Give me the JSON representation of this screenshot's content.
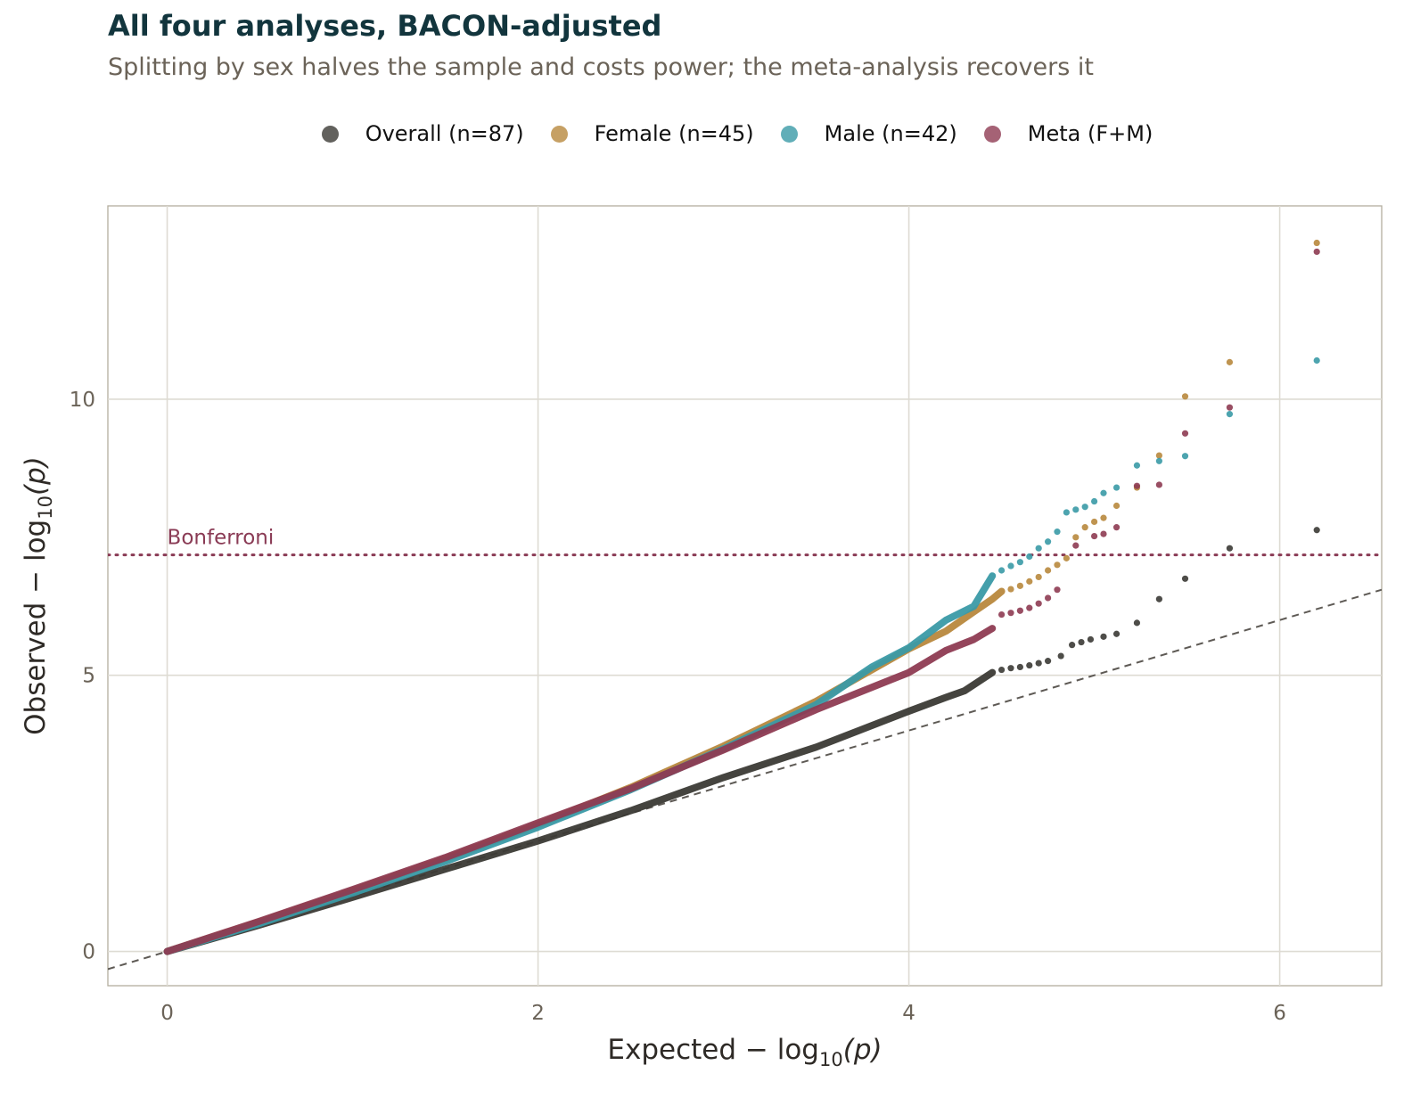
{
  "chart_data": {
    "type": "scatter",
    "title": "All four analyses, BACON-adjusted",
    "subtitle": "Splitting by sex halves the sample and costs power; the meta-analysis recovers it",
    "xlabel": {
      "pre": "Expected − log",
      "sub": "10",
      "post": "(p)"
    },
    "ylabel": {
      "pre": "Observed − log",
      "sub": "10",
      "post": "(p)"
    },
    "xlim": [
      -0.32,
      6.55
    ],
    "ylim": [
      -0.62,
      13.5
    ],
    "x_ticks": [
      0,
      2,
      4,
      6
    ],
    "y_ticks": [
      0,
      5,
      10
    ],
    "grid": true,
    "legend_position": "top",
    "reference_line": {
      "type": "identity",
      "style": "dashed",
      "color": "#5e5a55"
    },
    "threshold_line": {
      "label": "Bonferroni",
      "y": 7.18,
      "style": "dotted",
      "color": "#8a3b55"
    },
    "series": [
      {
        "name": "Overall (n=87)",
        "color": "#3b3a35",
        "curve": [
          [
            0,
            0
          ],
          [
            0.5,
            0.48
          ],
          [
            1.0,
            0.98
          ],
          [
            1.5,
            1.49
          ],
          [
            2.0,
            2.0
          ],
          [
            2.5,
            2.55
          ],
          [
            3.0,
            3.15
          ],
          [
            3.5,
            3.7
          ],
          [
            4.0,
            4.35
          ],
          [
            4.2,
            4.6
          ],
          [
            4.3,
            4.72
          ],
          [
            4.45,
            5.05
          ]
        ],
        "points": [
          [
            4.5,
            5.1
          ],
          [
            4.55,
            5.13
          ],
          [
            4.6,
            5.15
          ],
          [
            4.65,
            5.18
          ],
          [
            4.7,
            5.22
          ],
          [
            4.75,
            5.26
          ],
          [
            4.82,
            5.35
          ],
          [
            4.88,
            5.55
          ],
          [
            4.93,
            5.6
          ],
          [
            4.98,
            5.65
          ],
          [
            5.05,
            5.7
          ],
          [
            5.12,
            5.75
          ],
          [
            5.23,
            5.95
          ],
          [
            5.35,
            6.38
          ],
          [
            5.49,
            6.75
          ],
          [
            5.73,
            7.3
          ],
          [
            6.2,
            7.63
          ]
        ]
      },
      {
        "name": "Female (n=45)",
        "color": "#b8883d",
        "curve": [
          [
            0,
            0
          ],
          [
            0.5,
            0.54
          ],
          [
            1.0,
            1.1
          ],
          [
            1.5,
            1.68
          ],
          [
            2.0,
            2.3
          ],
          [
            2.5,
            2.97
          ],
          [
            3.0,
            3.72
          ],
          [
            3.5,
            4.53
          ],
          [
            4.0,
            5.48
          ],
          [
            4.2,
            5.8
          ],
          [
            4.35,
            6.15
          ],
          [
            4.45,
            6.38
          ],
          [
            4.5,
            6.52
          ]
        ],
        "points": [
          [
            4.55,
            6.56
          ],
          [
            4.6,
            6.62
          ],
          [
            4.65,
            6.7
          ],
          [
            4.7,
            6.78
          ],
          [
            4.75,
            6.9
          ],
          [
            4.8,
            7.0
          ],
          [
            4.85,
            7.12
          ],
          [
            4.9,
            7.5
          ],
          [
            4.95,
            7.68
          ],
          [
            5.0,
            7.78
          ],
          [
            5.05,
            7.85
          ],
          [
            5.12,
            8.07
          ],
          [
            5.23,
            8.4
          ],
          [
            5.35,
            8.98
          ],
          [
            5.49,
            10.05
          ],
          [
            5.73,
            10.67
          ],
          [
            6.2,
            12.83
          ]
        ]
      },
      {
        "name": "Male (n=42)",
        "color": "#3a9aa6",
        "curve": [
          [
            0,
            0
          ],
          [
            0.5,
            0.51
          ],
          [
            1.0,
            1.06
          ],
          [
            1.5,
            1.63
          ],
          [
            2.0,
            2.25
          ],
          [
            2.5,
            2.93
          ],
          [
            3.0,
            3.67
          ],
          [
            3.5,
            4.47
          ],
          [
            3.8,
            5.15
          ],
          [
            4.0,
            5.5
          ],
          [
            4.2,
            6.0
          ],
          [
            4.35,
            6.25
          ],
          [
            4.45,
            6.8
          ]
        ],
        "points": [
          [
            4.5,
            6.9
          ],
          [
            4.55,
            6.98
          ],
          [
            4.6,
            7.05
          ],
          [
            4.65,
            7.15
          ],
          [
            4.7,
            7.3
          ],
          [
            4.75,
            7.42
          ],
          [
            4.8,
            7.6
          ],
          [
            4.85,
            7.95
          ],
          [
            4.9,
            8.0
          ],
          [
            4.95,
            8.05
          ],
          [
            5.0,
            8.15
          ],
          [
            5.05,
            8.3
          ],
          [
            5.12,
            8.4
          ],
          [
            5.23,
            8.8
          ],
          [
            5.35,
            8.88
          ],
          [
            5.49,
            8.97
          ],
          [
            5.73,
            9.73
          ],
          [
            6.2,
            10.7
          ]
        ]
      },
      {
        "name": "Meta (F+M)",
        "color": "#8e3b52",
        "curve": [
          [
            0,
            0
          ],
          [
            0.5,
            0.55
          ],
          [
            1.0,
            1.12
          ],
          [
            1.5,
            1.7
          ],
          [
            2.0,
            2.33
          ],
          [
            2.5,
            2.95
          ],
          [
            3.0,
            3.65
          ],
          [
            3.5,
            4.38
          ],
          [
            4.0,
            5.05
          ],
          [
            4.2,
            5.45
          ],
          [
            4.35,
            5.65
          ],
          [
            4.45,
            5.85
          ]
        ],
        "points": [
          [
            4.5,
            6.1
          ],
          [
            4.55,
            6.13
          ],
          [
            4.6,
            6.17
          ],
          [
            4.65,
            6.22
          ],
          [
            4.7,
            6.3
          ],
          [
            4.75,
            6.4
          ],
          [
            4.8,
            6.55
          ],
          [
            4.9,
            7.35
          ],
          [
            5.0,
            7.52
          ],
          [
            5.05,
            7.56
          ],
          [
            5.12,
            7.68
          ],
          [
            5.23,
            8.43
          ],
          [
            5.35,
            8.45
          ],
          [
            5.49,
            9.38
          ],
          [
            5.73,
            9.85
          ],
          [
            6.2,
            12.67
          ]
        ]
      }
    ]
  }
}
